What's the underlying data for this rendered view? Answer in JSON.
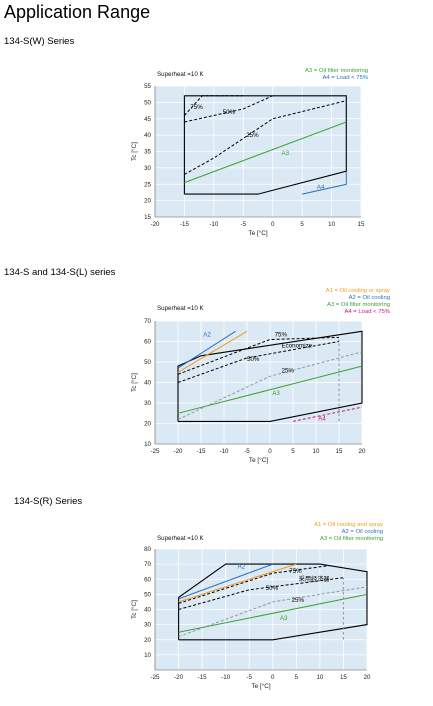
{
  "page_title": "Application Range",
  "chart_data": [
    {
      "type": "line",
      "section_title": "134-S(W) Series",
      "annotation": "Superheat =10 K",
      "xlabel": "Te [°C]",
      "ylabel": "Tc [°C]",
      "xlim": [
        -20,
        15
      ],
      "ylim": [
        15,
        55
      ],
      "xticks": [
        -20,
        -15,
        -10,
        -5,
        0,
        5,
        10,
        15
      ],
      "yticks": [
        15,
        20,
        25,
        30,
        35,
        40,
        45,
        50,
        55
      ],
      "legend": [
        {
          "label": "A3 = Oil filter monitoring",
          "color": "#3aa335"
        },
        {
          "label": "A4 = Load  <  75%",
          "color": "#2e6fc0"
        }
      ],
      "series": [
        {
          "name": "envelope",
          "color": "#000000",
          "style": "solid",
          "x": [
            -15,
            -15,
            12.5,
            12.5,
            -2.5,
            -15
          ],
          "y": [
            22,
            52,
            52,
            29,
            22,
            22
          ]
        },
        {
          "name": "A3",
          "color": "#3aa335",
          "style": "solid",
          "x": [
            -15,
            12.5
          ],
          "y": [
            25.5,
            44
          ]
        },
        {
          "name": "A4",
          "color": "#2e6fc0",
          "style": "solid",
          "x": [
            5,
            12.5,
            12.5
          ],
          "y": [
            22,
            25,
            29
          ]
        },
        {
          "name": "75%",
          "color": "#000000",
          "style": "dashed",
          "x": [
            -15,
            -12,
            -5
          ],
          "y": [
            46,
            52,
            52
          ]
        },
        {
          "name": "50%",
          "color": "#000000",
          "style": "dashed",
          "x": [
            -15,
            -5,
            0
          ],
          "y": [
            44,
            48,
            52
          ]
        },
        {
          "name": "25%",
          "color": "#000000",
          "style": "dashed",
          "x": [
            -15,
            -10,
            0,
            12.5
          ],
          "y": [
            28,
            33,
            45,
            50.5
          ]
        }
      ],
      "labels": [
        {
          "text": "75%",
          "x": -14,
          "y": 48,
          "color": "#000000"
        },
        {
          "text": "50%",
          "x": -8.5,
          "y": 46.5,
          "color": "#000000"
        },
        {
          "text": "25%",
          "x": -4.5,
          "y": 39.5,
          "color": "#000000"
        },
        {
          "text": "A3",
          "x": 1.5,
          "y": 34,
          "color": "#3aa335"
        },
        {
          "text": "A4",
          "x": 7.5,
          "y": 23.5,
          "color": "#2e6fc0"
        }
      ]
    },
    {
      "type": "line",
      "section_title": "134-S and 134-S(L) series",
      "annotation": "Superheat =10 K",
      "xlabel": "Te [°C]",
      "ylabel": "Tc [°C]",
      "xlim": [
        -25,
        20
      ],
      "ylim": [
        10,
        70
      ],
      "xticks": [
        -25,
        -20,
        -15,
        -10,
        -5,
        0,
        5,
        10,
        15,
        20
      ],
      "yticks": [
        10,
        20,
        30,
        40,
        50,
        60,
        70
      ],
      "legend": [
        {
          "label": "A1 = Oil cooling or spray",
          "color": "#f39a1e"
        },
        {
          "label": "A2 = Oil cooling",
          "color": "#2e6fc0"
        },
        {
          "label": "A3 = Oil filter monitoring",
          "color": "#3aa335"
        },
        {
          "label": "A4 = Load < 75%",
          "color": "#c9177e"
        }
      ],
      "series": [
        {
          "name": "envelope",
          "color": "#000000",
          "style": "solid",
          "x": [
            -20,
            -20,
            -15,
            20,
            20,
            0,
            -20
          ],
          "y": [
            21,
            48,
            53,
            65,
            30,
            21,
            21
          ]
        },
        {
          "name": "A1",
          "color": "#f39a1e",
          "style": "solid",
          "x": [
            -20,
            -5
          ],
          "y": [
            45,
            65
          ]
        },
        {
          "name": "A2",
          "color": "#2e6fc0",
          "style": "solid",
          "x": [
            -20,
            -7.5
          ],
          "y": [
            47,
            65
          ]
        },
        {
          "name": "A3",
          "color": "#3aa335",
          "style": "solid",
          "x": [
            -20,
            20
          ],
          "y": [
            25,
            48
          ]
        },
        {
          "name": "A4",
          "color": "#c9177e",
          "style": "dashed",
          "x": [
            5,
            20
          ],
          "y": [
            21,
            28
          ]
        },
        {
          "name": "75%",
          "color": "#000000",
          "style": "dashed",
          "x": [
            -20,
            0,
            15
          ],
          "y": [
            44,
            61,
            62
          ]
        },
        {
          "name": "50%",
          "color": "#000000",
          "style": "dashed",
          "x": [
            -20,
            -5,
            15
          ],
          "y": [
            40,
            52,
            60
          ]
        },
        {
          "name": "25%",
          "color": "#8a9aa8",
          "style": "dashed",
          "x": [
            -20,
            0,
            20
          ],
          "y": [
            22,
            43,
            55
          ]
        },
        {
          "name": "Economizer",
          "color": "#8a9aa8",
          "style": "dashed",
          "x": [
            15,
            15
          ],
          "y": [
            21,
            61
          ]
        }
      ],
      "labels": [
        {
          "text": "A2",
          "x": -14.5,
          "y": 62.5,
          "color": "#2e6fc0"
        },
        {
          "text": "75%",
          "x": 1,
          "y": 62.5,
          "color": "#000000"
        },
        {
          "text": "Economize",
          "x": 2.5,
          "y": 57,
          "color": "#000000"
        },
        {
          "text": "50%",
          "x": -5,
          "y": 50.5,
          "color": "#000000"
        },
        {
          "text": "25%",
          "x": 2.5,
          "y": 45,
          "color": "#000000"
        },
        {
          "text": "A3",
          "x": 0.5,
          "y": 34,
          "color": "#3aa335"
        },
        {
          "text": "A4",
          "x": 10.5,
          "y": 21.5,
          "color": "#c9177e"
        }
      ]
    },
    {
      "type": "line",
      "section_title": "134-S(R) Series",
      "annotation": "Superheat =10 K",
      "xlabel": "Te [°C]",
      "ylabel": "Tc [°C]",
      "xlim": [
        -25,
        20
      ],
      "ylim": [
        0,
        80
      ],
      "xticks": [
        -25,
        -20,
        -15,
        -10,
        -5,
        0,
        5,
        10,
        15,
        20
      ],
      "yticks": [
        10,
        20,
        30,
        40,
        50,
        60,
        70,
        80
      ],
      "legend": [
        {
          "label": "A1 = Oil cooling and spray",
          "color": "#f39a1e"
        },
        {
          "label": "A2 = Oil cooling",
          "color": "#2e6fc0"
        },
        {
          "label": "A3 = Oil filter monitoring",
          "color": "#3aa335"
        }
      ],
      "series": [
        {
          "name": "envelope",
          "color": "#000000",
          "style": "solid",
          "x": [
            -20,
            -20,
            -10,
            10,
            20,
            20,
            0,
            -20
          ],
          "y": [
            20,
            48,
            70,
            70,
            65,
            30,
            20,
            20
          ]
        },
        {
          "name": "A1",
          "color": "#f39a1e",
          "style": "solid",
          "x": [
            -20,
            5
          ],
          "y": [
            45,
            70
          ]
        },
        {
          "name": "A2",
          "color": "#2e6fc0",
          "style": "solid",
          "x": [
            -20,
            0
          ],
          "y": [
            47,
            70
          ]
        },
        {
          "name": "A3",
          "color": "#3aa335",
          "style": "solid",
          "x": [
            -20,
            20
          ],
          "y": [
            25,
            50
          ]
        },
        {
          "name": "75%",
          "color": "#000000",
          "style": "dashed",
          "x": [
            -20,
            0,
            12
          ],
          "y": [
            44,
            64,
            69
          ]
        },
        {
          "name": "50%",
          "color": "#000000",
          "style": "dashed",
          "x": [
            -20,
            -5,
            15
          ],
          "y": [
            40,
            53,
            61
          ]
        },
        {
          "name": "25%",
          "color": "#8a9aa8",
          "style": "dashed",
          "x": [
            -20,
            0,
            20
          ],
          "y": [
            22,
            45,
            55
          ]
        },
        {
          "name": "Economizer",
          "color": "#8a9aa8",
          "style": "dashed",
          "x": [
            15,
            15
          ],
          "y": [
            20,
            61
          ]
        }
      ],
      "labels": [
        {
          "text": "A2",
          "x": -7.5,
          "y": 67,
          "color": "#2e6fc0"
        },
        {
          "text": "75%",
          "x": 3.5,
          "y": 64,
          "color": "#000000"
        },
        {
          "text": "采用经济器",
          "x": 5.5,
          "y": 59,
          "color": "#000000"
        },
        {
          "text": "50%",
          "x": -1.5,
          "y": 53,
          "color": "#000000"
        },
        {
          "text": "25%",
          "x": 4,
          "y": 45,
          "color": "#000000"
        },
        {
          "text": "A3",
          "x": 1.5,
          "y": 33,
          "color": "#3aa335"
        }
      ]
    }
  ]
}
